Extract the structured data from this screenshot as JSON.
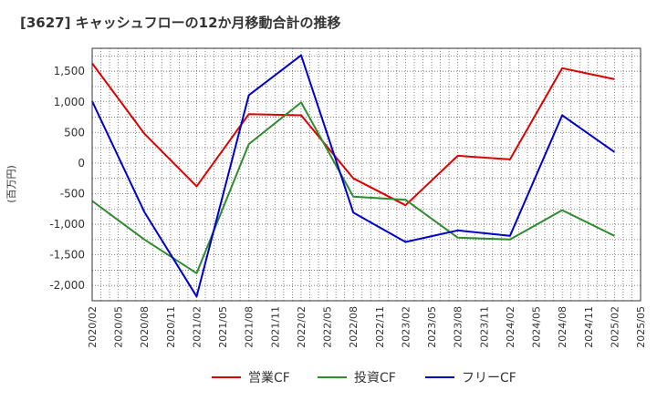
{
  "chart_data": {
    "type": "line",
    "title": "[3627]  キャッシュフローの12か月移動合計の推移",
    "ylabel": "(百万円)",
    "xlabel": "",
    "ylim": [
      -2250,
      1875
    ],
    "yticks": [
      1500,
      1000,
      500,
      0,
      -500,
      -1000,
      -1500,
      -2000
    ],
    "ytick_labels": [
      "1,500",
      "1,000",
      "500",
      "0",
      "-500",
      "-1,000",
      "-1,500",
      "-2,000"
    ],
    "x_labels": [
      "2020/02",
      "2020/05",
      "2020/08",
      "2020/11",
      "2021/02",
      "2021/05",
      "2021/08",
      "2021/11",
      "2022/02",
      "2022/05",
      "2022/08",
      "2022/11",
      "2023/02",
      "2023/05",
      "2023/08",
      "2023/11",
      "2024/02",
      "2024/05",
      "2024/08",
      "2024/11",
      "2025/02",
      "2025/05"
    ],
    "grid": true,
    "legend_position": "bottom",
    "series": [
      {
        "name": "営業CF",
        "color": "#dd0000",
        "values": [
          1630,
          null,
          480,
          null,
          -380,
          null,
          800,
          null,
          780,
          null,
          -250,
          null,
          -690,
          null,
          120,
          null,
          60,
          null,
          1550,
          null,
          1370,
          null
        ]
      },
      {
        "name": "投資CF",
        "color": "#2e8b2e",
        "values": [
          -620,
          null,
          -1250,
          null,
          -1800,
          null,
          310,
          null,
          990,
          null,
          -550,
          null,
          -600,
          null,
          -1220,
          null,
          -1250,
          null,
          -770,
          null,
          -1190,
          null
        ]
      },
      {
        "name": "フリーCF",
        "color": "#0000cc",
        "values": [
          1010,
          null,
          -800,
          null,
          -2180,
          null,
          1110,
          null,
          1760,
          null,
          -810,
          null,
          -1290,
          null,
          -1100,
          null,
          -1190,
          null,
          780,
          null,
          180,
          null
        ]
      }
    ]
  }
}
